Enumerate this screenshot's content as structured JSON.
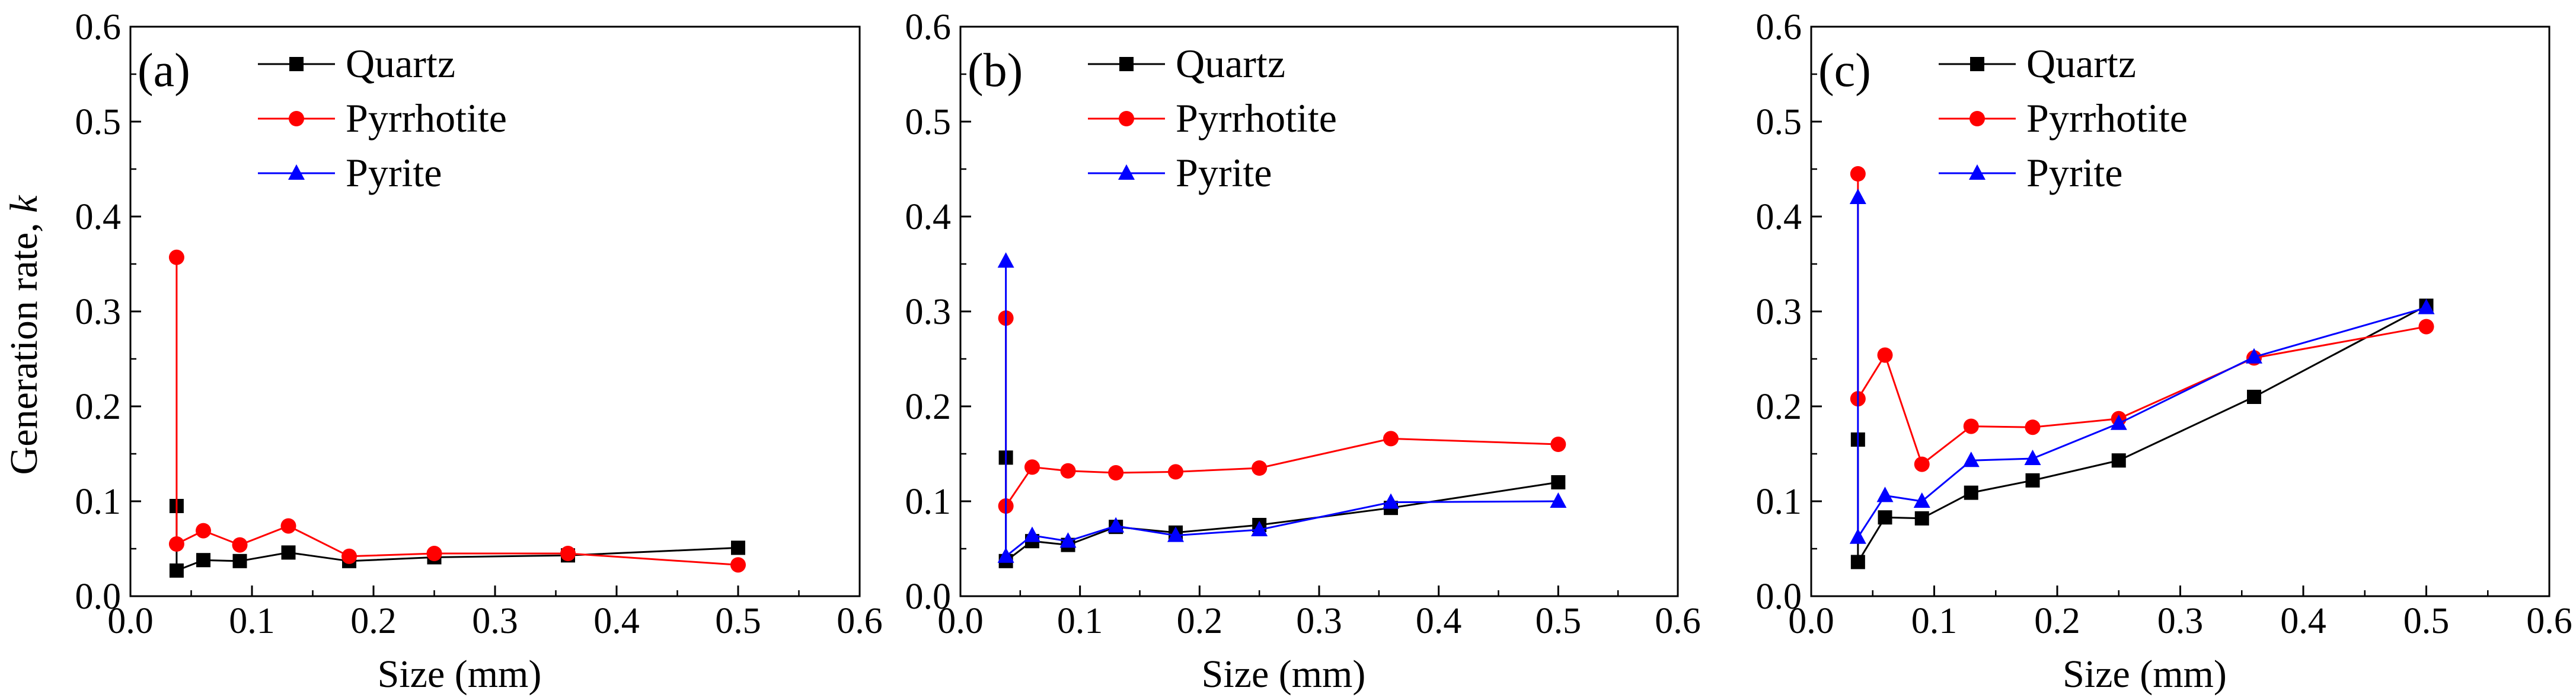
{
  "chart_data": [
    {
      "type": "line",
      "panel_label": "(a)",
      "xlabel": "Size (mm)",
      "ylabel": "Generation rate, ",
      "ylabel_italic": "k",
      "xlim": [
        0.0,
        0.6
      ],
      "ylim": [
        0.0,
        0.6
      ],
      "xticks": [
        "0.0",
        "0.1",
        "0.2",
        "0.3",
        "0.4",
        "0.5",
        "0.6"
      ],
      "yticks": [
        "0.0",
        "0.1",
        "0.2",
        "0.3",
        "0.4",
        "0.5",
        "0.6"
      ],
      "legend_position": "top-left",
      "series": [
        {
          "name": "Quartz",
          "color": "#000000",
          "marker": "square",
          "x": [
            0.038,
            0.038,
            0.06,
            0.09,
            0.13,
            0.18,
            0.25,
            0.36,
            0.5
          ],
          "y": [
            0.095,
            0.027,
            0.038,
            0.037,
            0.046,
            0.037,
            0.041,
            0.043,
            0.051
          ]
        },
        {
          "name": "Pyrrhotite",
          "color": "#ff0000",
          "marker": "circle",
          "x": [
            0.038,
            0.038,
            0.06,
            0.09,
            0.13,
            0.18,
            0.25,
            0.36,
            0.5
          ],
          "y": [
            0.357,
            0.055,
            0.069,
            0.054,
            0.074,
            0.042,
            0.045,
            0.045,
            0.033
          ]
        },
        {
          "name": "Pyrite",
          "color": "#0000ff",
          "marker": "triangle",
          "x": [],
          "y": []
        }
      ]
    },
    {
      "type": "line",
      "panel_label": "(b)",
      "xlabel": "Size (mm)",
      "ylabel": "",
      "ylabel_italic": "",
      "xlim": [
        0.0,
        0.6
      ],
      "ylim": [
        0.0,
        0.6
      ],
      "xticks": [
        "0.0",
        "0.1",
        "0.2",
        "0.3",
        "0.4",
        "0.5",
        "0.6"
      ],
      "yticks": [
        "0.0",
        "0.1",
        "0.2",
        "0.3",
        "0.4",
        "0.5",
        "0.6"
      ],
      "legend_position": "top-left",
      "series": [
        {
          "name": "Quartz",
          "color": "#000000",
          "marker": "square",
          "x": [
            0.038,
            0.038,
            0.06,
            0.09,
            0.13,
            0.18,
            0.25,
            0.36,
            0.5
          ],
          "y": [
            0.146,
            0.037,
            0.058,
            0.054,
            0.073,
            0.067,
            0.075,
            0.093,
            0.12
          ]
        },
        {
          "name": "Pyrrhotite",
          "color": "#ff0000",
          "marker": "circle",
          "x": [
            0.038,
            0.038,
            0.06,
            0.09,
            0.13,
            0.18,
            0.25,
            0.36,
            0.5
          ],
          "y": [
            0.293,
            0.095,
            0.136,
            0.132,
            0.13,
            0.131,
            0.135,
            0.166,
            0.16
          ]
        },
        {
          "name": "Pyrite",
          "color": "#0000ff",
          "marker": "triangle",
          "x": [
            0.038,
            0.038,
            0.06,
            0.09,
            0.13,
            0.18,
            0.25,
            0.36,
            0.5
          ],
          "y": [
            0.353,
            0.042,
            0.064,
            0.058,
            0.074,
            0.064,
            0.07,
            0.099,
            0.1
          ]
        }
      ]
    },
    {
      "type": "line",
      "panel_label": "(c)",
      "xlabel": "Size (mm)",
      "ylabel": "",
      "ylabel_italic": "",
      "xlim": [
        0.0,
        0.6
      ],
      "ylim": [
        0.0,
        0.6
      ],
      "xticks": [
        "0.0",
        "0.1",
        "0.2",
        "0.3",
        "0.4",
        "0.5",
        "0.6"
      ],
      "yticks": [
        "0.0",
        "0.1",
        "0.2",
        "0.3",
        "0.4",
        "0.5",
        "0.6"
      ],
      "legend_position": "top-left",
      "series": [
        {
          "name": "Quartz",
          "color": "#000000",
          "marker": "square",
          "x": [
            0.038,
            0.038,
            0.06,
            0.09,
            0.13,
            0.18,
            0.25,
            0.36,
            0.5
          ],
          "y": [
            0.165,
            0.036,
            0.083,
            0.082,
            0.109,
            0.122,
            0.143,
            0.21,
            0.306
          ]
        },
        {
          "name": "Pyrrhotite",
          "color": "#ff0000",
          "marker": "circle",
          "x": [
            0.038,
            0.038,
            0.06,
            0.09,
            0.13,
            0.18,
            0.25,
            0.36,
            0.5
          ],
          "y": [
            0.445,
            0.208,
            0.254,
            0.139,
            0.179,
            0.178,
            0.187,
            0.251,
            0.284
          ]
        },
        {
          "name": "Pyrite",
          "color": "#0000ff",
          "marker": "triangle",
          "x": [
            0.038,
            0.038,
            0.06,
            0.09,
            0.13,
            0.18,
            0.25,
            0.36,
            0.5
          ],
          "y": [
            0.42,
            0.062,
            0.106,
            0.1,
            0.143,
            0.145,
            0.182,
            0.252,
            0.304
          ]
        }
      ]
    }
  ]
}
